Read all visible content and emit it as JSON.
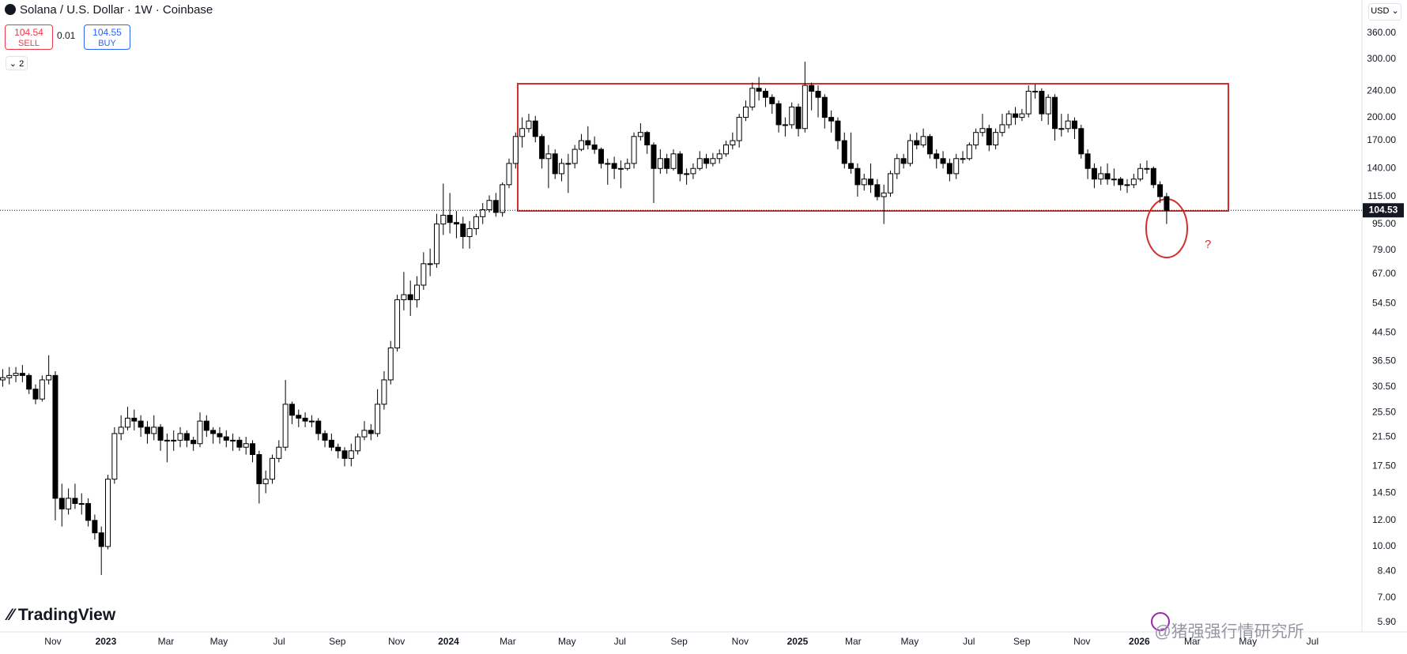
{
  "header": {
    "symbol": "Solana / U.S. Dollar · 1W · Coinbase",
    "sell_price": 104.54,
    "sell_label": "SELL",
    "spread": 0.01,
    "buy_price": 104.55,
    "buy_label": "BUY",
    "indicators_count": 2,
    "currency": "USD"
  },
  "chart_data": {
    "type": "candlestick",
    "log_scale": true,
    "grid": false,
    "up_color": "#ffffff",
    "down_color": "#000000",
    "outline_color": "#000000",
    "annotation": "?",
    "brand": "TradingView",
    "watermark": "@猪强强行情研究所",
    "xlim": [
      -0.41,
      206.7
    ],
    "xticks": [
      {
        "value": 7.64,
        "label": "Nov"
      },
      {
        "value": 15.69,
        "label": "2023"
      },
      {
        "value": 24.83,
        "label": "Mar"
      },
      {
        "value": 32.88,
        "label": "May"
      },
      {
        "value": 42.02,
        "label": "Jul"
      },
      {
        "value": 50.89,
        "label": "Sep"
      },
      {
        "value": 59.89,
        "label": "Nov"
      },
      {
        "value": 67.8,
        "label": "2024"
      },
      {
        "value": 76.81,
        "label": "Mar"
      },
      {
        "value": 85.81,
        "label": "May"
      },
      {
        "value": 93.86,
        "label": "Jul"
      },
      {
        "value": 102.86,
        "label": "Sep"
      },
      {
        "value": 112.14,
        "label": "Nov"
      },
      {
        "value": 120.87,
        "label": "2025"
      },
      {
        "value": 129.33,
        "label": "Mar"
      },
      {
        "value": 137.93,
        "label": "May"
      },
      {
        "value": 146.93,
        "label": "Jul"
      },
      {
        "value": 154.98,
        "label": "Sep"
      },
      {
        "value": 164.12,
        "label": "Nov"
      },
      {
        "value": 172.85,
        "label": "2026"
      },
      {
        "value": 180.9,
        "label": "Mar"
      },
      {
        "value": 189.36,
        "label": "May"
      },
      {
        "value": 199.18,
        "label": "Jul"
      }
    ],
    "ylim": [
      5.51,
      453.8
    ],
    "yticks": [
      {
        "value": 360,
        "label": "360.00"
      },
      {
        "value": 300,
        "label": "300.00"
      },
      {
        "value": 240,
        "label": "240.00"
      },
      {
        "value": 200,
        "label": "200.00"
      },
      {
        "value": 170,
        "label": "170.00"
      },
      {
        "value": 140,
        "label": "140.00"
      },
      {
        "value": 115,
        "label": "115.00"
      },
      {
        "value": 95,
        "label": "95.00"
      },
      {
        "value": 79,
        "label": "79.00"
      },
      {
        "value": 67,
        "label": "67.00"
      },
      {
        "value": 54.5,
        "label": "54.50"
      },
      {
        "value": 44.5,
        "label": "44.50"
      },
      {
        "value": 36.5,
        "label": "36.50"
      },
      {
        "value": 30.5,
        "label": "30.50"
      },
      {
        "value": 25.5,
        "label": "25.50"
      },
      {
        "value": 21.5,
        "label": "21.50"
      },
      {
        "value": 17.5,
        "label": "17.50"
      },
      {
        "value": 14.5,
        "label": "14.50"
      },
      {
        "value": 12,
        "label": "12.00"
      },
      {
        "value": 10,
        "label": "10.00"
      },
      {
        "value": 8.4,
        "label": "8.40"
      },
      {
        "value": 7,
        "label": "7.00"
      },
      {
        "value": 5.9,
        "label": "5.90"
      }
    ],
    "open": [
      32,
      32.5,
      33,
      33.5,
      33,
      30,
      28,
      32,
      33,
      14,
      13,
      14,
      13.5,
      13.5,
      12,
      11,
      10,
      16,
      22,
      23,
      24.5,
      24,
      23,
      22,
      23,
      21,
      21,
      21,
      22,
      21,
      20.5,
      24,
      22.5,
      22,
      21.5,
      21,
      21,
      20,
      20.5,
      19,
      15.5,
      16,
      18.5,
      20,
      27,
      25,
      24.5,
      24,
      24,
      22,
      21,
      20,
      19.5,
      18.5,
      19.5,
      21.5,
      22.5,
      22,
      27,
      32,
      40,
      56,
      58,
      56,
      62,
      72,
      72,
      95,
      101,
      96,
      95,
      87,
      92,
      100,
      105,
      112,
      103,
      125,
      145,
      175,
      185,
      195,
      175,
      150,
      155,
      135,
      145,
      145,
      160,
      170,
      165,
      160,
      145,
      145,
      140,
      140,
      145,
      175,
      180,
      165,
      140,
      150,
      140,
      155,
      135,
      135,
      140,
      150,
      145,
      150,
      155,
      165,
      170,
      200,
      215,
      245,
      240,
      230,
      220,
      190,
      190,
      215,
      185,
      250,
      240,
      230,
      200,
      195,
      170,
      145,
      140,
      125,
      130,
      125,
      115,
      118,
      135,
      150,
      145,
      170,
      165,
      175,
      155,
      150,
      145,
      135,
      150,
      150,
      165,
      180,
      185,
      165,
      180,
      190,
      205,
      200,
      205,
      240,
      240,
      205,
      230,
      185,
      185,
      195,
      185,
      155,
      140,
      130,
      135,
      130,
      130,
      125,
      125,
      130,
      140,
      140,
      125,
      115
    ],
    "high": [
      34.5,
      35,
      35,
      35.5,
      33.5,
      31,
      33,
      38,
      34,
      15.5,
      15,
      15.5,
      14.5,
      14,
      12.5,
      11.5,
      16.5,
      23,
      25,
      26.5,
      26,
      25,
      24,
      25,
      23.5,
      22,
      22.5,
      23,
      22.5,
      21.5,
      25.5,
      25,
      23,
      23,
      22.5,
      22,
      21.5,
      21.5,
      21,
      19.5,
      17,
      19,
      21,
      32,
      27.5,
      26,
      25.5,
      25,
      24.5,
      22.5,
      22,
      20.5,
      20,
      20.5,
      22,
      24,
      23.5,
      30,
      34,
      42,
      58,
      68,
      64,
      66,
      78,
      80,
      102,
      126,
      118,
      104,
      100,
      97,
      102,
      110,
      116,
      118,
      127,
      150,
      180,
      200,
      205,
      202,
      178,
      165,
      160,
      150,
      155,
      165,
      178,
      188,
      175,
      162,
      150,
      152,
      148,
      150,
      180,
      192,
      182,
      168,
      160,
      155,
      160,
      158,
      140,
      145,
      158,
      155,
      156,
      160,
      170,
      180,
      205,
      225,
      255,
      265,
      245,
      235,
      225,
      200,
      222,
      220,
      295,
      255,
      250,
      235,
      210,
      200,
      180,
      180,
      145,
      135,
      145,
      130,
      125,
      138,
      155,
      155,
      178,
      180,
      185,
      178,
      160,
      158,
      150,
      155,
      158,
      168,
      185,
      205,
      190,
      185,
      205,
      210,
      215,
      212,
      250,
      252,
      245,
      235,
      235,
      205,
      205,
      200,
      190,
      160,
      145,
      142,
      145,
      140,
      132,
      130,
      135,
      145,
      148,
      142,
      128,
      118
    ],
    "low": [
      30.5,
      31,
      31.5,
      31.5,
      29,
      27,
      27.5,
      31,
      12,
      11.5,
      12.5,
      13,
      12.5,
      11.5,
      10.5,
      8.2,
      9.8,
      15.5,
      21,
      22.5,
      22.5,
      21.5,
      20.5,
      21,
      19.5,
      18,
      19.5,
      20,
      20,
      19.5,
      20,
      21.5,
      20.5,
      20.5,
      20,
      19.5,
      19.5,
      19,
      18,
      13.5,
      14.5,
      15.5,
      18,
      19.5,
      23.5,
      23,
      23,
      23,
      21,
      20,
      19.5,
      18.5,
      17.5,
      17.5,
      19,
      21,
      21,
      21.5,
      26,
      31,
      39,
      52,
      50,
      53,
      60,
      66,
      70,
      88,
      89,
      86,
      80,
      80,
      88,
      95,
      103,
      100,
      100,
      122,
      140,
      162,
      180,
      168,
      140,
      122,
      130,
      128,
      118,
      140,
      158,
      160,
      155,
      140,
      125,
      130,
      122,
      138,
      140,
      170,
      155,
      110,
      135,
      135,
      138,
      128,
      125,
      130,
      138,
      140,
      142,
      145,
      152,
      160,
      162,
      195,
      210,
      225,
      215,
      205,
      180,
      175,
      185,
      175,
      180,
      210,
      200,
      185,
      180,
      160,
      140,
      135,
      115,
      120,
      118,
      112,
      95,
      115,
      130,
      140,
      142,
      160,
      162,
      150,
      140,
      140,
      128,
      130,
      145,
      148,
      160,
      175,
      158,
      160,
      175,
      185,
      190,
      195,
      200,
      228,
      195,
      190,
      170,
      175,
      180,
      172,
      150,
      130,
      122,
      125,
      125,
      124,
      120,
      118,
      122,
      128,
      135,
      122,
      110,
      95
    ],
    "close": [
      32.5,
      33,
      33.5,
      33,
      30,
      28,
      32,
      33,
      14,
      13,
      14,
      13.5,
      13.5,
      12,
      11,
      10,
      16,
      22,
      23,
      24.5,
      24,
      23,
      22,
      23,
      21,
      21,
      21,
      22,
      21,
      20.5,
      24,
      22.5,
      22,
      21.5,
      21,
      21,
      20,
      20.5,
      19,
      15.5,
      16,
      18.5,
      20,
      27,
      25,
      24.5,
      24,
      24,
      22,
      21,
      20,
      19.5,
      18.5,
      19.5,
      21.5,
      22.5,
      22,
      27,
      32,
      40,
      56,
      58,
      56,
      62,
      72,
      72,
      95,
      101,
      96,
      95,
      87,
      92,
      100,
      105,
      112,
      103,
      125,
      145,
      175,
      185,
      195,
      175,
      150,
      155,
      135,
      145,
      145,
      160,
      170,
      165,
      160,
      145,
      145,
      140,
      140,
      145,
      175,
      180,
      165,
      140,
      150,
      140,
      155,
      135,
      135,
      140,
      150,
      145,
      150,
      155,
      165,
      170,
      200,
      215,
      245,
      240,
      230,
      220,
      190,
      190,
      215,
      185,
      250,
      240,
      230,
      200,
      195,
      170,
      145,
      140,
      125,
      130,
      125,
      115,
      118,
      135,
      150,
      145,
      170,
      165,
      175,
      155,
      150,
      145,
      135,
      150,
      150,
      165,
      180,
      185,
      165,
      180,
      190,
      205,
      200,
      205,
      240,
      240,
      205,
      230,
      185,
      185,
      195,
      185,
      155,
      140,
      130,
      135,
      130,
      130,
      125,
      125,
      130,
      140,
      140,
      125,
      115,
      104.53
    ]
  }
}
